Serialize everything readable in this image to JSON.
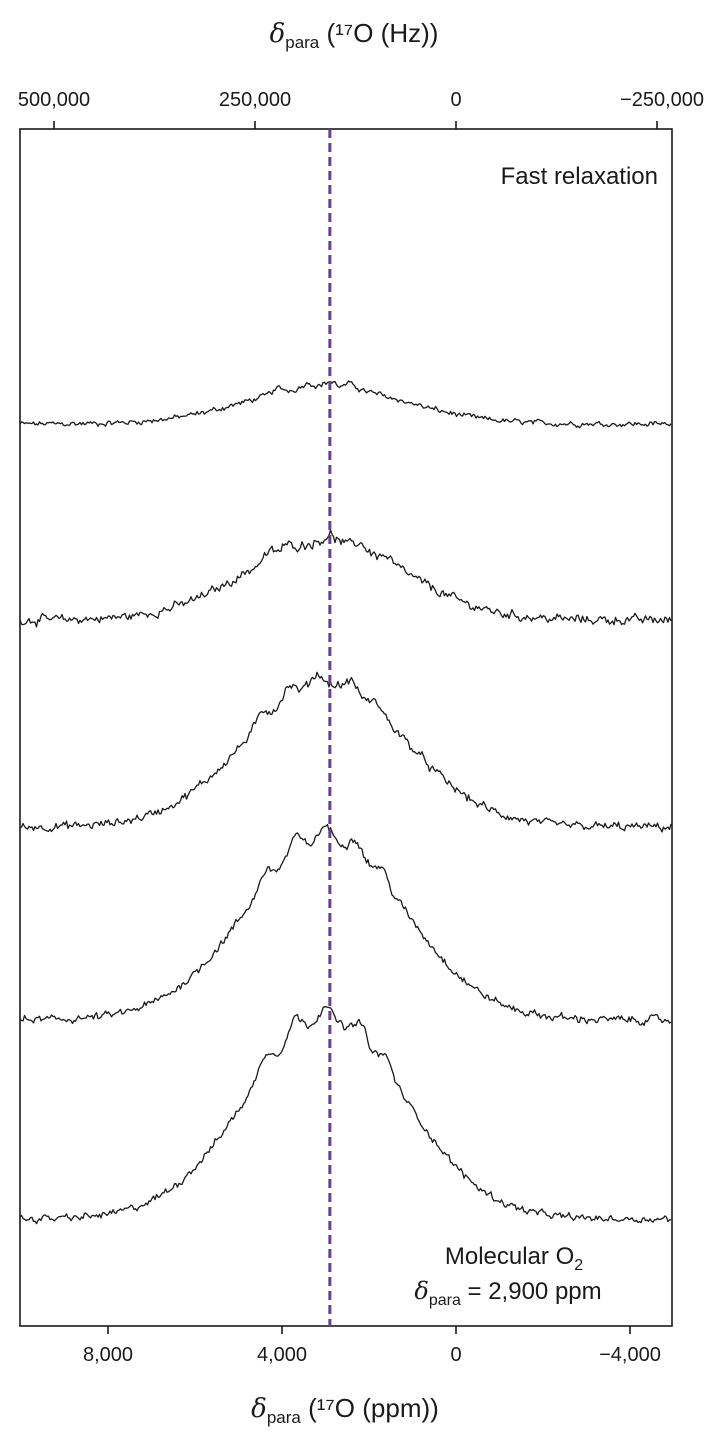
{
  "chart_data": {
    "type": "line",
    "top_axis": {
      "symbol": "δ",
      "subscript": "para",
      "label_rest": " (¹⁷O (Hz))",
      "ticks": [
        500000,
        250000,
        0,
        -250000
      ],
      "tick_labels": [
        "500,000",
        "250,000",
        "0",
        "−250,000"
      ]
    },
    "bottom_axis": {
      "symbol": "δ",
      "subscript": "para",
      "label_rest": " (¹⁷O (ppm))",
      "xlim": [
        10000,
        -5000
      ],
      "ticks": [
        8000,
        4000,
        0,
        -4000
      ],
      "tick_labels": [
        "8,000",
        "4,000",
        "0",
        "−4,000"
      ]
    },
    "y_axis": {
      "ticks": false
    },
    "reference_line": {
      "x": 2900,
      "style": "dashed",
      "color": "#6a3d9a"
    },
    "annotations": {
      "top": "Fast relaxation",
      "bottom_line1": "Molecular O",
      "bottom_line1_sub": "2",
      "bottom_line2_symbol": "δ",
      "bottom_line2_sub": "para",
      "bottom_line2_rest": " = 2,900 ppm"
    },
    "series": [
      {
        "peaks": [
          {
            "x": 4100,
            "h": 0.22
          },
          {
            "x": 3400,
            "h": 0.26
          },
          {
            "x": 2900,
            "h": 0.28
          },
          {
            "x": 2400,
            "h": 0.24
          }
        ],
        "baseline_left": 0.0,
        "baseline_right": 0.0,
        "envelope_height": 0.16,
        "noise": 0.018
      },
      {
        "peaks": [
          {
            "x": 4300,
            "h": 0.32
          },
          {
            "x": 3900,
            "h": 0.26
          },
          {
            "x": 2900,
            "h": 0.34
          },
          {
            "x": 2200,
            "h": 0.28
          },
          {
            "x": 1600,
            "h": 0.22
          }
        ],
        "baseline_left": 0.0,
        "baseline_right": 0.0,
        "envelope_height": 0.34,
        "noise": 0.03
      },
      {
        "peaks": [
          {
            "x": 4450,
            "h": 0.55
          },
          {
            "x": 3850,
            "h": 0.62
          },
          {
            "x": 3200,
            "h": 0.55
          },
          {
            "x": 2400,
            "h": 0.52
          },
          {
            "x": 1800,
            "h": 0.4
          }
        ],
        "baseline_left": 0.0,
        "baseline_right": 0.0,
        "envelope_height": 0.62,
        "noise": 0.028
      },
      {
        "peaks": [
          {
            "x": 4400,
            "h": 0.7
          },
          {
            "x": 3700,
            "h": 0.78
          },
          {
            "x": 3000,
            "h": 0.74
          },
          {
            "x": 2300,
            "h": 0.68
          },
          {
            "x": 1700,
            "h": 0.58
          }
        ],
        "baseline_left": 0.0,
        "baseline_right": 0.0,
        "envelope_height": 0.78,
        "noise": 0.026
      },
      {
        "peaks": [
          {
            "x": 4400,
            "h": 0.82
          },
          {
            "x": 3700,
            "h": 0.86
          },
          {
            "x": 3000,
            "h": 0.8
          },
          {
            "x": 2200,
            "h": 0.78
          },
          {
            "x": 1600,
            "h": 0.68
          }
        ],
        "baseline_left": 0.0,
        "baseline_right": 0.0,
        "envelope_height": 0.86,
        "noise": 0.024
      }
    ]
  }
}
